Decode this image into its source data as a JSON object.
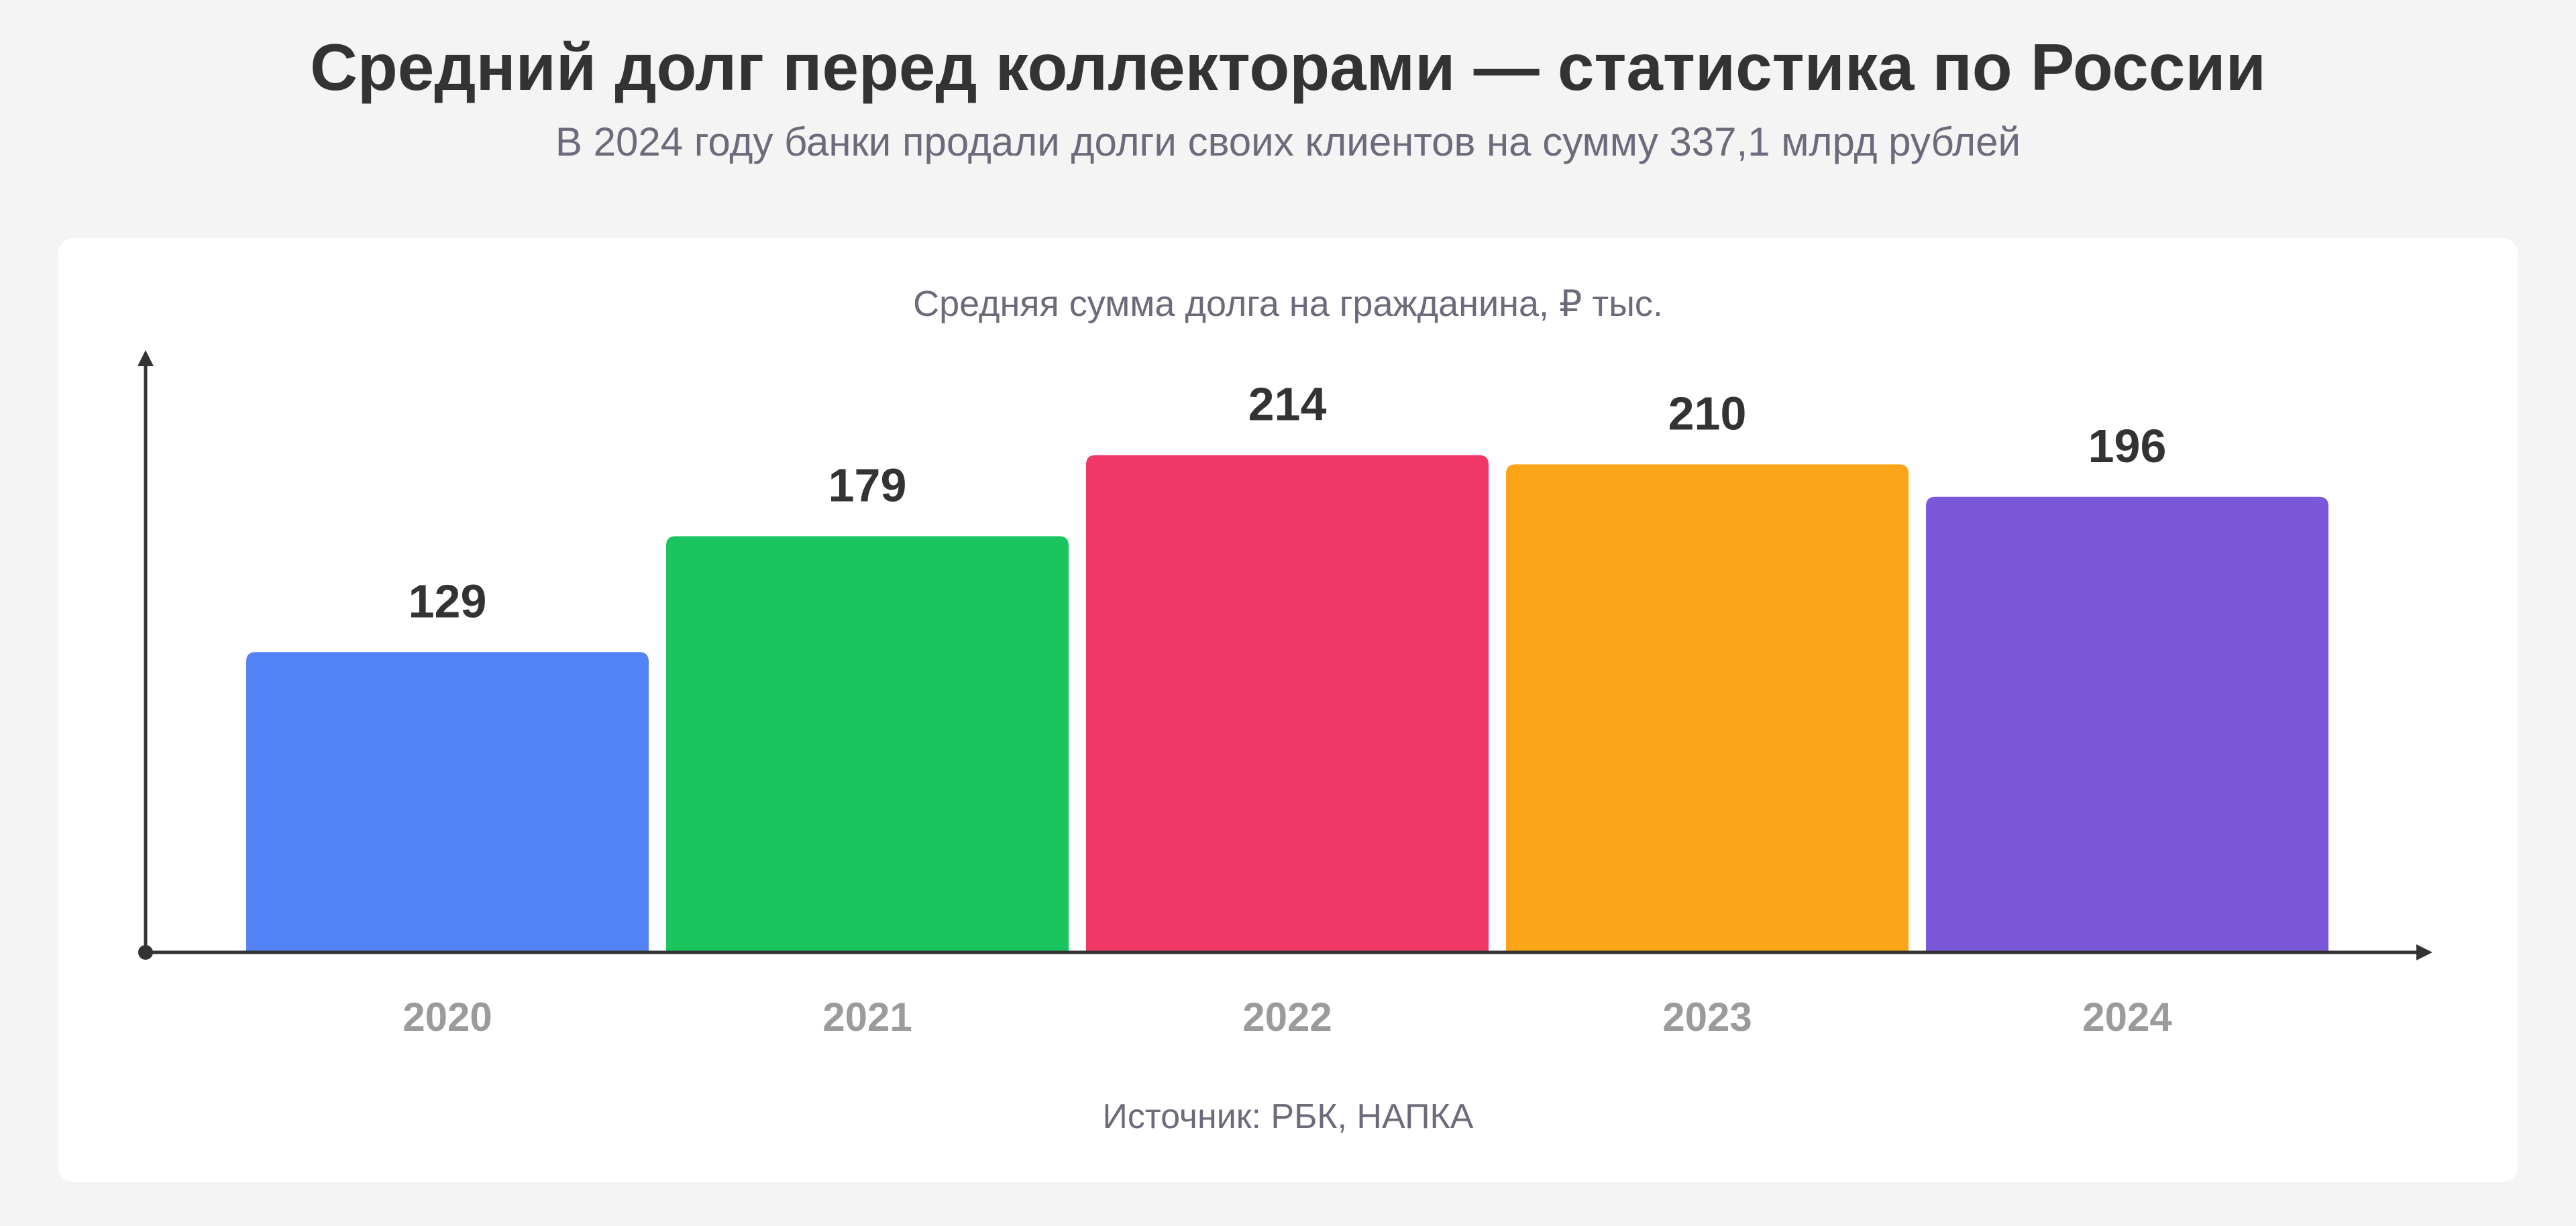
{
  "title": "Средний долг перед коллекторами — статистика по России",
  "subtitle": "В 2024 году банки продали долги своих клиентов на сумму 337,1 млрд рублей",
  "source": "Источник: РБК, НАПКА",
  "chart_data": {
    "type": "bar",
    "title": "Средняя сумма долга на гражданина, ₽ тыс.",
    "xlabel": "",
    "ylabel": "",
    "categories": [
      "2020",
      "2021",
      "2022",
      "2023",
      "2024"
    ],
    "values": [
      129,
      179,
      214,
      210,
      196
    ],
    "ylim": [
      0,
      290
    ],
    "colors": [
      "#5383f5",
      "#1ac45e",
      "#f03766",
      "#fca518",
      "#7b57d9"
    ],
    "grid": false,
    "legend": "none",
    "data_labels": true
  }
}
